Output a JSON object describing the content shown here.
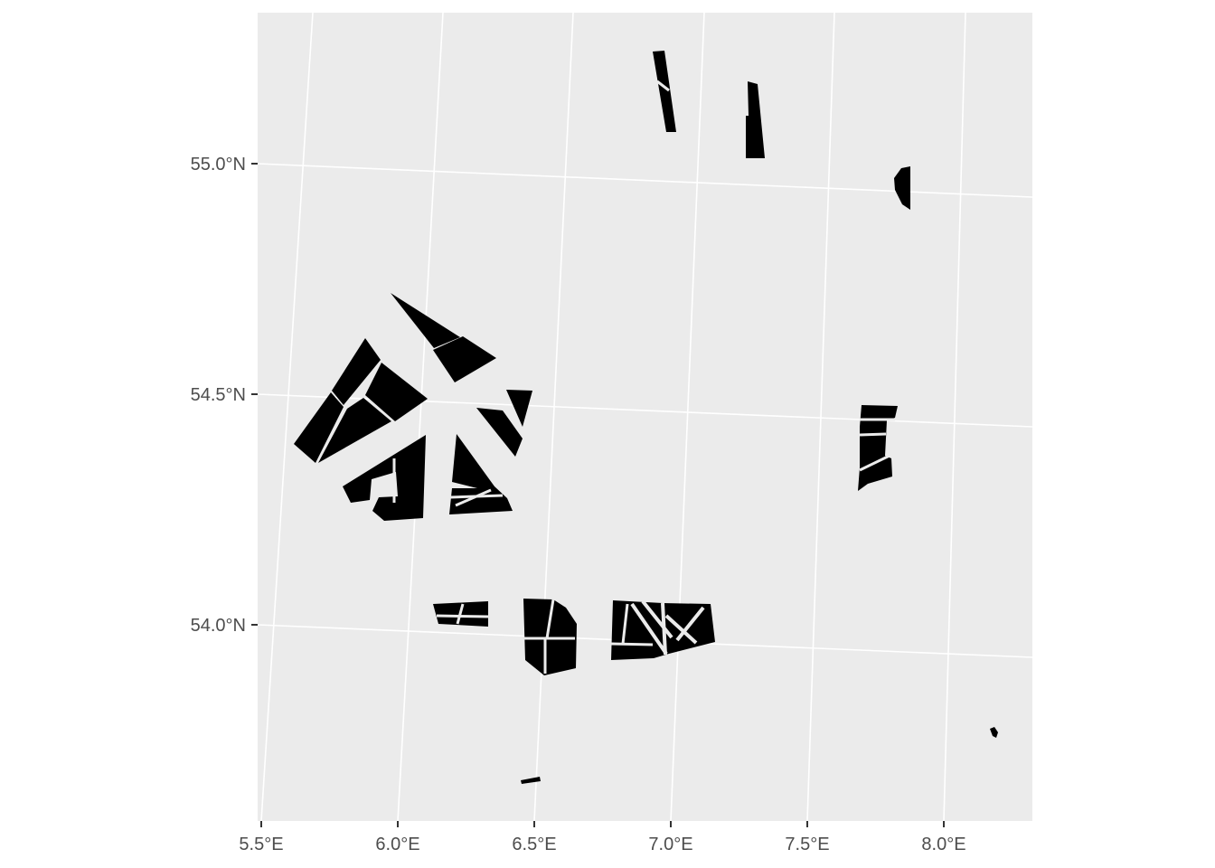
{
  "map": {
    "x_axis": {
      "ticks": [
        "5.5°E",
        "6.0°E",
        "6.5°E",
        "7.0°E",
        "7.5°E",
        "8.0°E"
      ]
    },
    "y_axis": {
      "ticks": [
        "55.0°N",
        "54.5°N",
        "54.0°N"
      ]
    },
    "colors": {
      "panel_background": "#ebebeb",
      "gridlines": "#ffffff",
      "polygons": "#000000",
      "axis_text": "#4d4d4d"
    },
    "features": [
      "farm-polygon-northwest-cluster",
      "farm-polygon-north-strip-1",
      "farm-polygon-north-strip-2",
      "farm-polygon-east-small",
      "farm-polygon-east-cluster",
      "farm-polygon-south-row",
      "farm-polygon-south-small",
      "farm-polygon-southeast-dot"
    ]
  }
}
